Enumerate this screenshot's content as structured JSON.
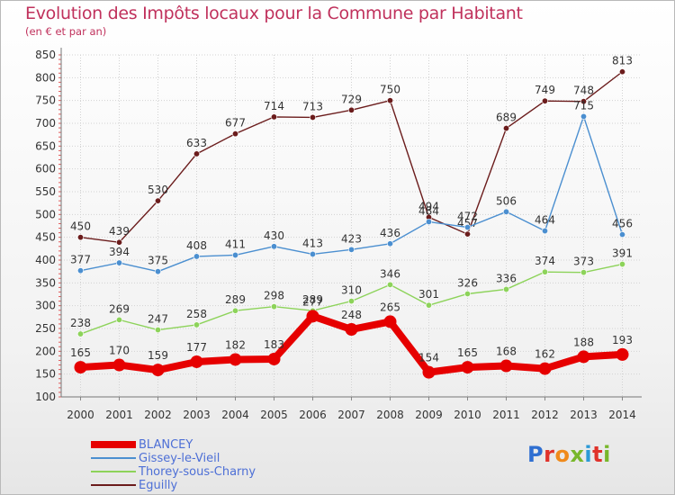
{
  "header": {
    "title": "Evolution des Impôts locaux pour la Commune par Habitant",
    "subtitle": "(en € et par an)"
  },
  "logo": {
    "text": "Proxiti",
    "colors": [
      "#2f6fd1",
      "#f08a1b",
      "#78b72a",
      "#e0322b",
      "#2c9ad6"
    ]
  },
  "chart_data": {
    "type": "line",
    "x": [
      2000,
      2001,
      2002,
      2003,
      2004,
      2005,
      2006,
      2007,
      2008,
      2009,
      2010,
      2011,
      2012,
      2013,
      2014
    ],
    "ylim": [
      100,
      850
    ],
    "yticks": [
      100,
      150,
      200,
      250,
      300,
      350,
      400,
      450,
      500,
      550,
      600,
      650,
      700,
      750,
      800,
      850
    ],
    "grid": true,
    "legend_position": "bottom-left",
    "series": [
      {
        "name": "BLANCEY",
        "color": "#e60000",
        "emphasis": true,
        "values": [
          165,
          170,
          159,
          177,
          182,
          183,
          277,
          248,
          265,
          154,
          165,
          168,
          162,
          188,
          193
        ]
      },
      {
        "name": "Gissey-le-Vieil",
        "color": "#4b8fd0",
        "values": [
          377,
          394,
          375,
          408,
          411,
          430,
          413,
          423,
          436,
          484,
          472,
          506,
          464,
          715,
          456
        ]
      },
      {
        "name": "Thorey-sous-Charny",
        "color": "#8dd35a",
        "values": [
          238,
          269,
          247,
          258,
          289,
          298,
          289,
          310,
          346,
          301,
          326,
          336,
          374,
          373,
          391
        ]
      },
      {
        "name": "Eguilly",
        "color": "#6b1c1c",
        "values": [
          450,
          439,
          530,
          633,
          677,
          714,
          713,
          729,
          750,
          494,
          457,
          689,
          749,
          748,
          813
        ]
      }
    ]
  }
}
